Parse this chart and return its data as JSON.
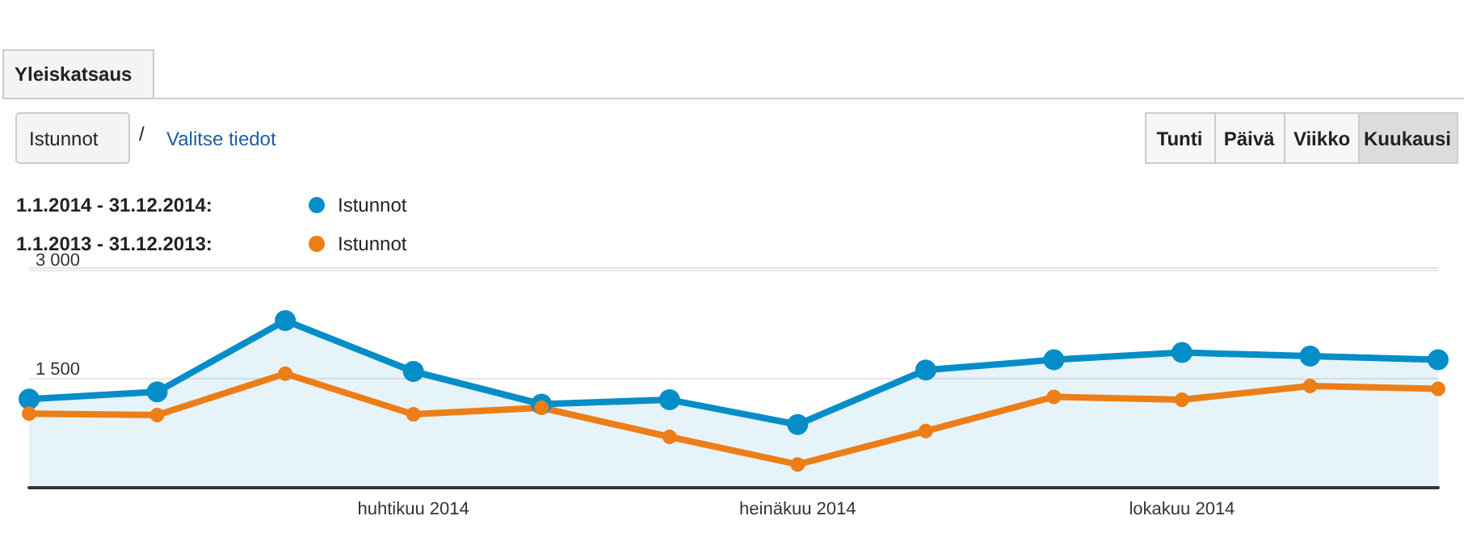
{
  "chart_data": {
    "type": "line",
    "categories": [
      null,
      null,
      null,
      "huhtikuu 2014",
      null,
      null,
      "heinäkuu 2014",
      null,
      null,
      "lokakuu 2014",
      null,
      null
    ],
    "series": [
      {
        "name": "Istunnot",
        "color": "#058dc7",
        "type": "area",
        "values": [
          1220,
          1320,
          2300,
          1600,
          1150,
          1210,
          870,
          1620,
          1760,
          1860,
          1810,
          1760
        ]
      },
      {
        "name": "Istunnot",
        "color": "#ed7e17",
        "values": [
          1020,
          1000,
          1570,
          1010,
          1100,
          700,
          320,
          780,
          1250,
          1210,
          1400,
          1360
        ]
      }
    ],
    "ylim": [
      0,
      3000
    ],
    "yticks": [
      {
        "value": 0,
        "label": null
      },
      {
        "value": 1500,
        "label": "1 500"
      },
      {
        "value": 3000,
        "label": "3 000"
      }
    ],
    "grid": "y",
    "legend": "top left",
    "marker": "circle",
    "line_style": "solid",
    "annotations": [
      "1.1.2014 - 31.12.2014:",
      "1.1.2013 - 31.12.2013:",
      "Yleiskatsaus",
      "Istunnot",
      "/",
      "Valitse tiedot",
      "Tunti",
      "Päivä",
      "Viikko",
      "Kuukausi"
    ]
  }
}
